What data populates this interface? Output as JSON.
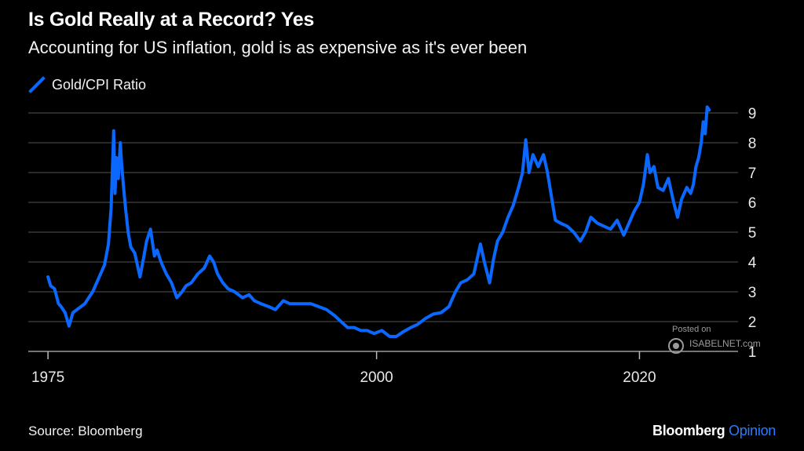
{
  "title": "Is Gold Really at a Record? Yes",
  "subtitle": "Accounting for US inflation, gold is as expensive as it's ever been",
  "legend": {
    "label": "Gold/CPI Ratio"
  },
  "source": "Source: Bloomberg",
  "brand": {
    "name": "Bloomberg",
    "suffix": "Opinion"
  },
  "watermark": {
    "posted": "Posted on",
    "site": "ISABELNET.com"
  },
  "colors": {
    "series": "#0a68ff",
    "background": "#000000",
    "grid": "#555555",
    "brand_accent": "#2b7bff"
  },
  "chart_data": {
    "type": "line",
    "title": "Is Gold Really at a Record? Yes",
    "subtitle": "Accounting for US inflation, gold is as expensive as it's ever been",
    "xlabel": "",
    "ylabel": "",
    "xlim": [
      1973.5,
      2027.5
    ],
    "ylim": [
      1,
      9
    ],
    "x_ticks": [
      1975,
      2000,
      2020
    ],
    "x_tick_labels": [
      "1975",
      "2000",
      "2020"
    ],
    "y_ticks": [
      1,
      2,
      3,
      4,
      5,
      6,
      7,
      8,
      9
    ],
    "y_tick_labels": [
      "1",
      "2",
      "3",
      "4",
      "5",
      "6",
      "7",
      "8",
      "9"
    ],
    "y_axis_side": "right",
    "grid": "horizontal",
    "legend_position": "top-left",
    "series": [
      {
        "name": "Gold/CPI Ratio",
        "x": [
          1975.0,
          1975.2,
          1975.5,
          1975.8,
          1976.0,
          1976.3,
          1976.6,
          1976.9,
          1977.2,
          1977.5,
          1977.8,
          1978.1,
          1978.4,
          1978.7,
          1979.0,
          1979.3,
          1979.6,
          1979.8,
          1980.0,
          1980.1,
          1980.2,
          1980.35,
          1980.5,
          1980.6,
          1980.75,
          1980.9,
          1981.1,
          1981.3,
          1981.6,
          1982.0,
          1982.3,
          1982.5,
          1982.8,
          1983.1,
          1983.3,
          1983.6,
          1984.0,
          1984.4,
          1984.8,
          1985.2,
          1985.5,
          1985.9,
          1986.4,
          1986.9,
          1987.3,
          1987.6,
          1987.9,
          1988.3,
          1988.7,
          1989.2,
          1989.8,
          1990.3,
          1990.7,
          1991.2,
          1991.8,
          1992.3,
          1992.9,
          1993.4,
          1993.8,
          1994.4,
          1995.0,
          1995.6,
          1996.2,
          1996.8,
          1997.3,
          1997.8,
          1998.3,
          1998.8,
          1999.3,
          1999.8,
          2000.4,
          2001.0,
          2001.5,
          2002.0,
          2002.6,
          2003.1,
          2003.7,
          2004.3,
          2004.9,
          2005.5,
          2006.0,
          2006.4,
          2006.9,
          2007.4,
          2007.9,
          2008.2,
          2008.6,
          2008.9,
          2009.2,
          2009.6,
          2010.0,
          2010.4,
          2010.8,
          2011.1,
          2011.35,
          2011.6,
          2011.9,
          2012.3,
          2012.7,
          2013.0,
          2013.3,
          2013.6,
          2014.0,
          2014.5,
          2015.0,
          2015.5,
          2015.9,
          2016.3,
          2016.8,
          2017.3,
          2017.8,
          2018.3,
          2018.8,
          2019.2,
          2019.6,
          2020.0,
          2020.3,
          2020.6,
          2020.8,
          2021.1,
          2021.4,
          2021.8,
          2022.2,
          2022.6,
          2022.9,
          2023.2,
          2023.6,
          2023.9,
          2024.1,
          2024.3,
          2024.5,
          2024.7,
          2024.85,
          2025.0,
          2025.15,
          2025.3
        ],
        "values": [
          3.5,
          3.2,
          3.1,
          2.6,
          2.5,
          2.3,
          1.85,
          2.3,
          2.4,
          2.5,
          2.6,
          2.8,
          3.0,
          3.3,
          3.6,
          3.9,
          4.6,
          5.8,
          8.4,
          6.3,
          7.5,
          6.8,
          8.0,
          7.3,
          6.5,
          5.8,
          5.0,
          4.5,
          4.3,
          3.5,
          4.2,
          4.7,
          5.1,
          4.2,
          4.4,
          4.0,
          3.6,
          3.3,
          2.8,
          3.0,
          3.2,
          3.3,
          3.6,
          3.8,
          4.2,
          4.0,
          3.6,
          3.3,
          3.1,
          3.0,
          2.8,
          2.9,
          2.7,
          2.6,
          2.5,
          2.4,
          2.7,
          2.6,
          2.6,
          2.6,
          2.6,
          2.5,
          2.4,
          2.2,
          2.0,
          1.8,
          1.8,
          1.7,
          1.7,
          1.6,
          1.7,
          1.5,
          1.5,
          1.65,
          1.8,
          1.9,
          2.1,
          2.25,
          2.3,
          2.5,
          3.0,
          3.3,
          3.4,
          3.6,
          4.6,
          4.0,
          3.3,
          4.1,
          4.7,
          5.0,
          5.5,
          5.9,
          6.5,
          7.0,
          8.1,
          7.0,
          7.6,
          7.2,
          7.6,
          7.0,
          6.2,
          5.4,
          5.3,
          5.2,
          5.0,
          4.7,
          5.0,
          5.5,
          5.3,
          5.2,
          5.1,
          5.4,
          4.9,
          5.3,
          5.7,
          6.0,
          6.6,
          7.6,
          7.0,
          7.2,
          6.5,
          6.4,
          6.8,
          6.0,
          5.5,
          6.1,
          6.5,
          6.3,
          6.6,
          7.2,
          7.5,
          8.0,
          8.7,
          8.3,
          9.2,
          9.1
        ]
      }
    ]
  }
}
